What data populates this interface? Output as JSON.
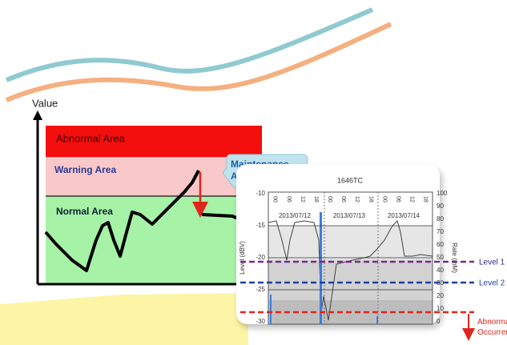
{
  "diagram": {
    "y_axis_label": "Value",
    "zones": [
      "Abnormal Area",
      "Warning Area",
      "Normal Area"
    ],
    "callout": "Maintenance Area"
  },
  "chart": {
    "title": "1646TC",
    "y_label": "Level (dBV)",
    "y2_label": "Rate (mM)",
    "yticks": [
      -10,
      -15,
      -20,
      -25,
      -30
    ],
    "y2ticks": [
      100,
      90,
      80,
      70,
      60,
      50,
      40,
      30,
      20,
      10,
      0
    ],
    "hours": [
      "00",
      "06",
      "12",
      "18",
      "00",
      "06",
      "12",
      "18",
      "00",
      "06",
      "12",
      "18"
    ],
    "dates": [
      "2013/07/12",
      "2013/07/13",
      "2013/07/14"
    ]
  },
  "levels": [
    "Level 1",
    "Level 2",
    "Abnormal Occurrence"
  ]
}
